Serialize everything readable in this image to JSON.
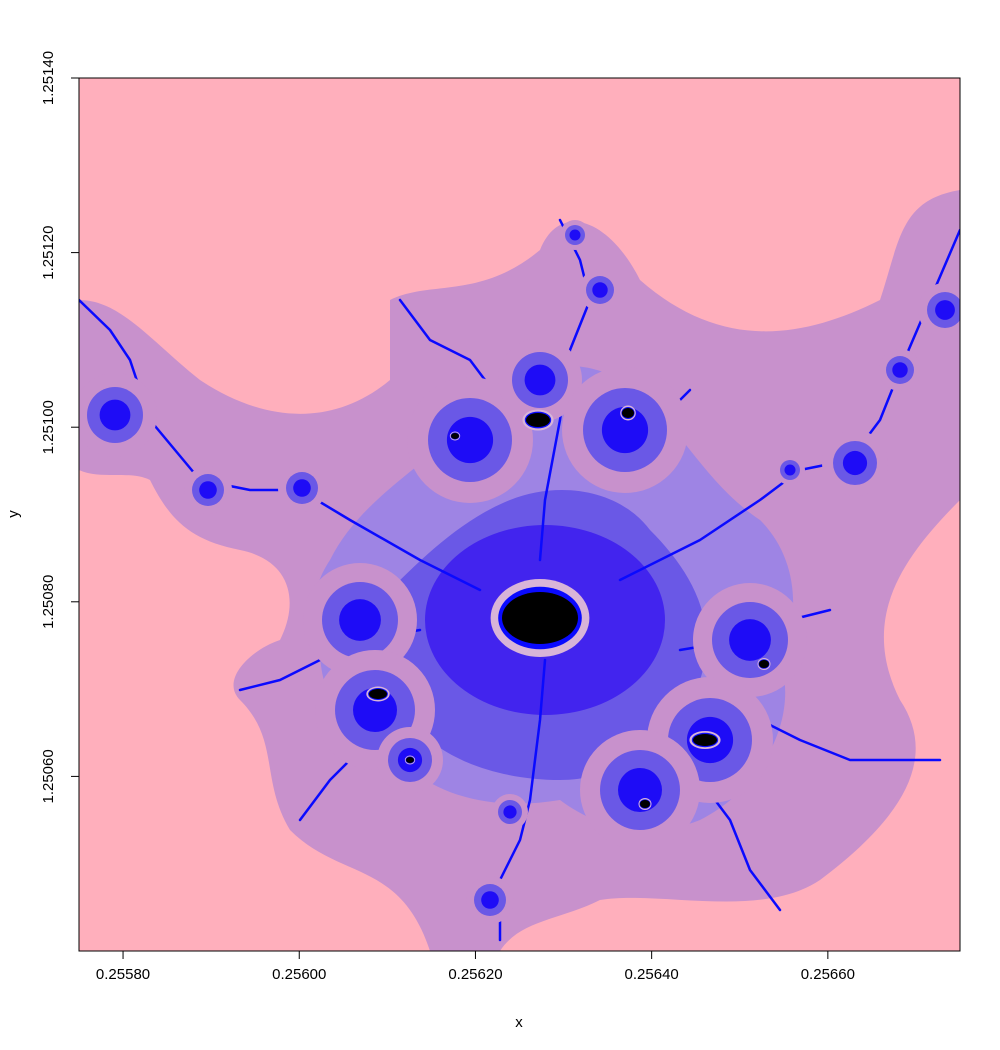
{
  "chart_data": {
    "type": "heatmap",
    "title": "",
    "xlabel": "x",
    "ylabel": "y",
    "xlim": [
      0.25575,
      0.25675
    ],
    "ylim": [
      1.2504,
      1.2514
    ],
    "x_ticks": [
      {
        "value": 0.2558,
        "label": "0.25580"
      },
      {
        "value": 0.256,
        "label": "0.25600"
      },
      {
        "value": 0.2562,
        "label": "0.25620"
      },
      {
        "value": 0.2564,
        "label": "0.25640"
      },
      {
        "value": 0.2566,
        "label": "0.25660"
      }
    ],
    "y_ticks": [
      {
        "value": 1.2506,
        "label": "1.25060"
      },
      {
        "value": 1.2508,
        "label": "1.25080"
      },
      {
        "value": 1.251,
        "label": "1.25100"
      },
      {
        "value": 1.2512,
        "label": "1.25120"
      },
      {
        "value": 1.2514,
        "label": "1.25140"
      }
    ],
    "grid": false,
    "legend": "none",
    "depicts": "Mandelbrot set escape-time fractal (minibrot region)",
    "colors": {
      "background": "#ffafbc",
      "level_1": "#c891cc",
      "level_2": "#9e84e4",
      "level_3": "#6a58e6",
      "level_4": "#4224ee",
      "level_5": "#1e0cf6",
      "filament": "#0a0aff",
      "halo": "#d8b4d8",
      "set": "#000000"
    }
  }
}
